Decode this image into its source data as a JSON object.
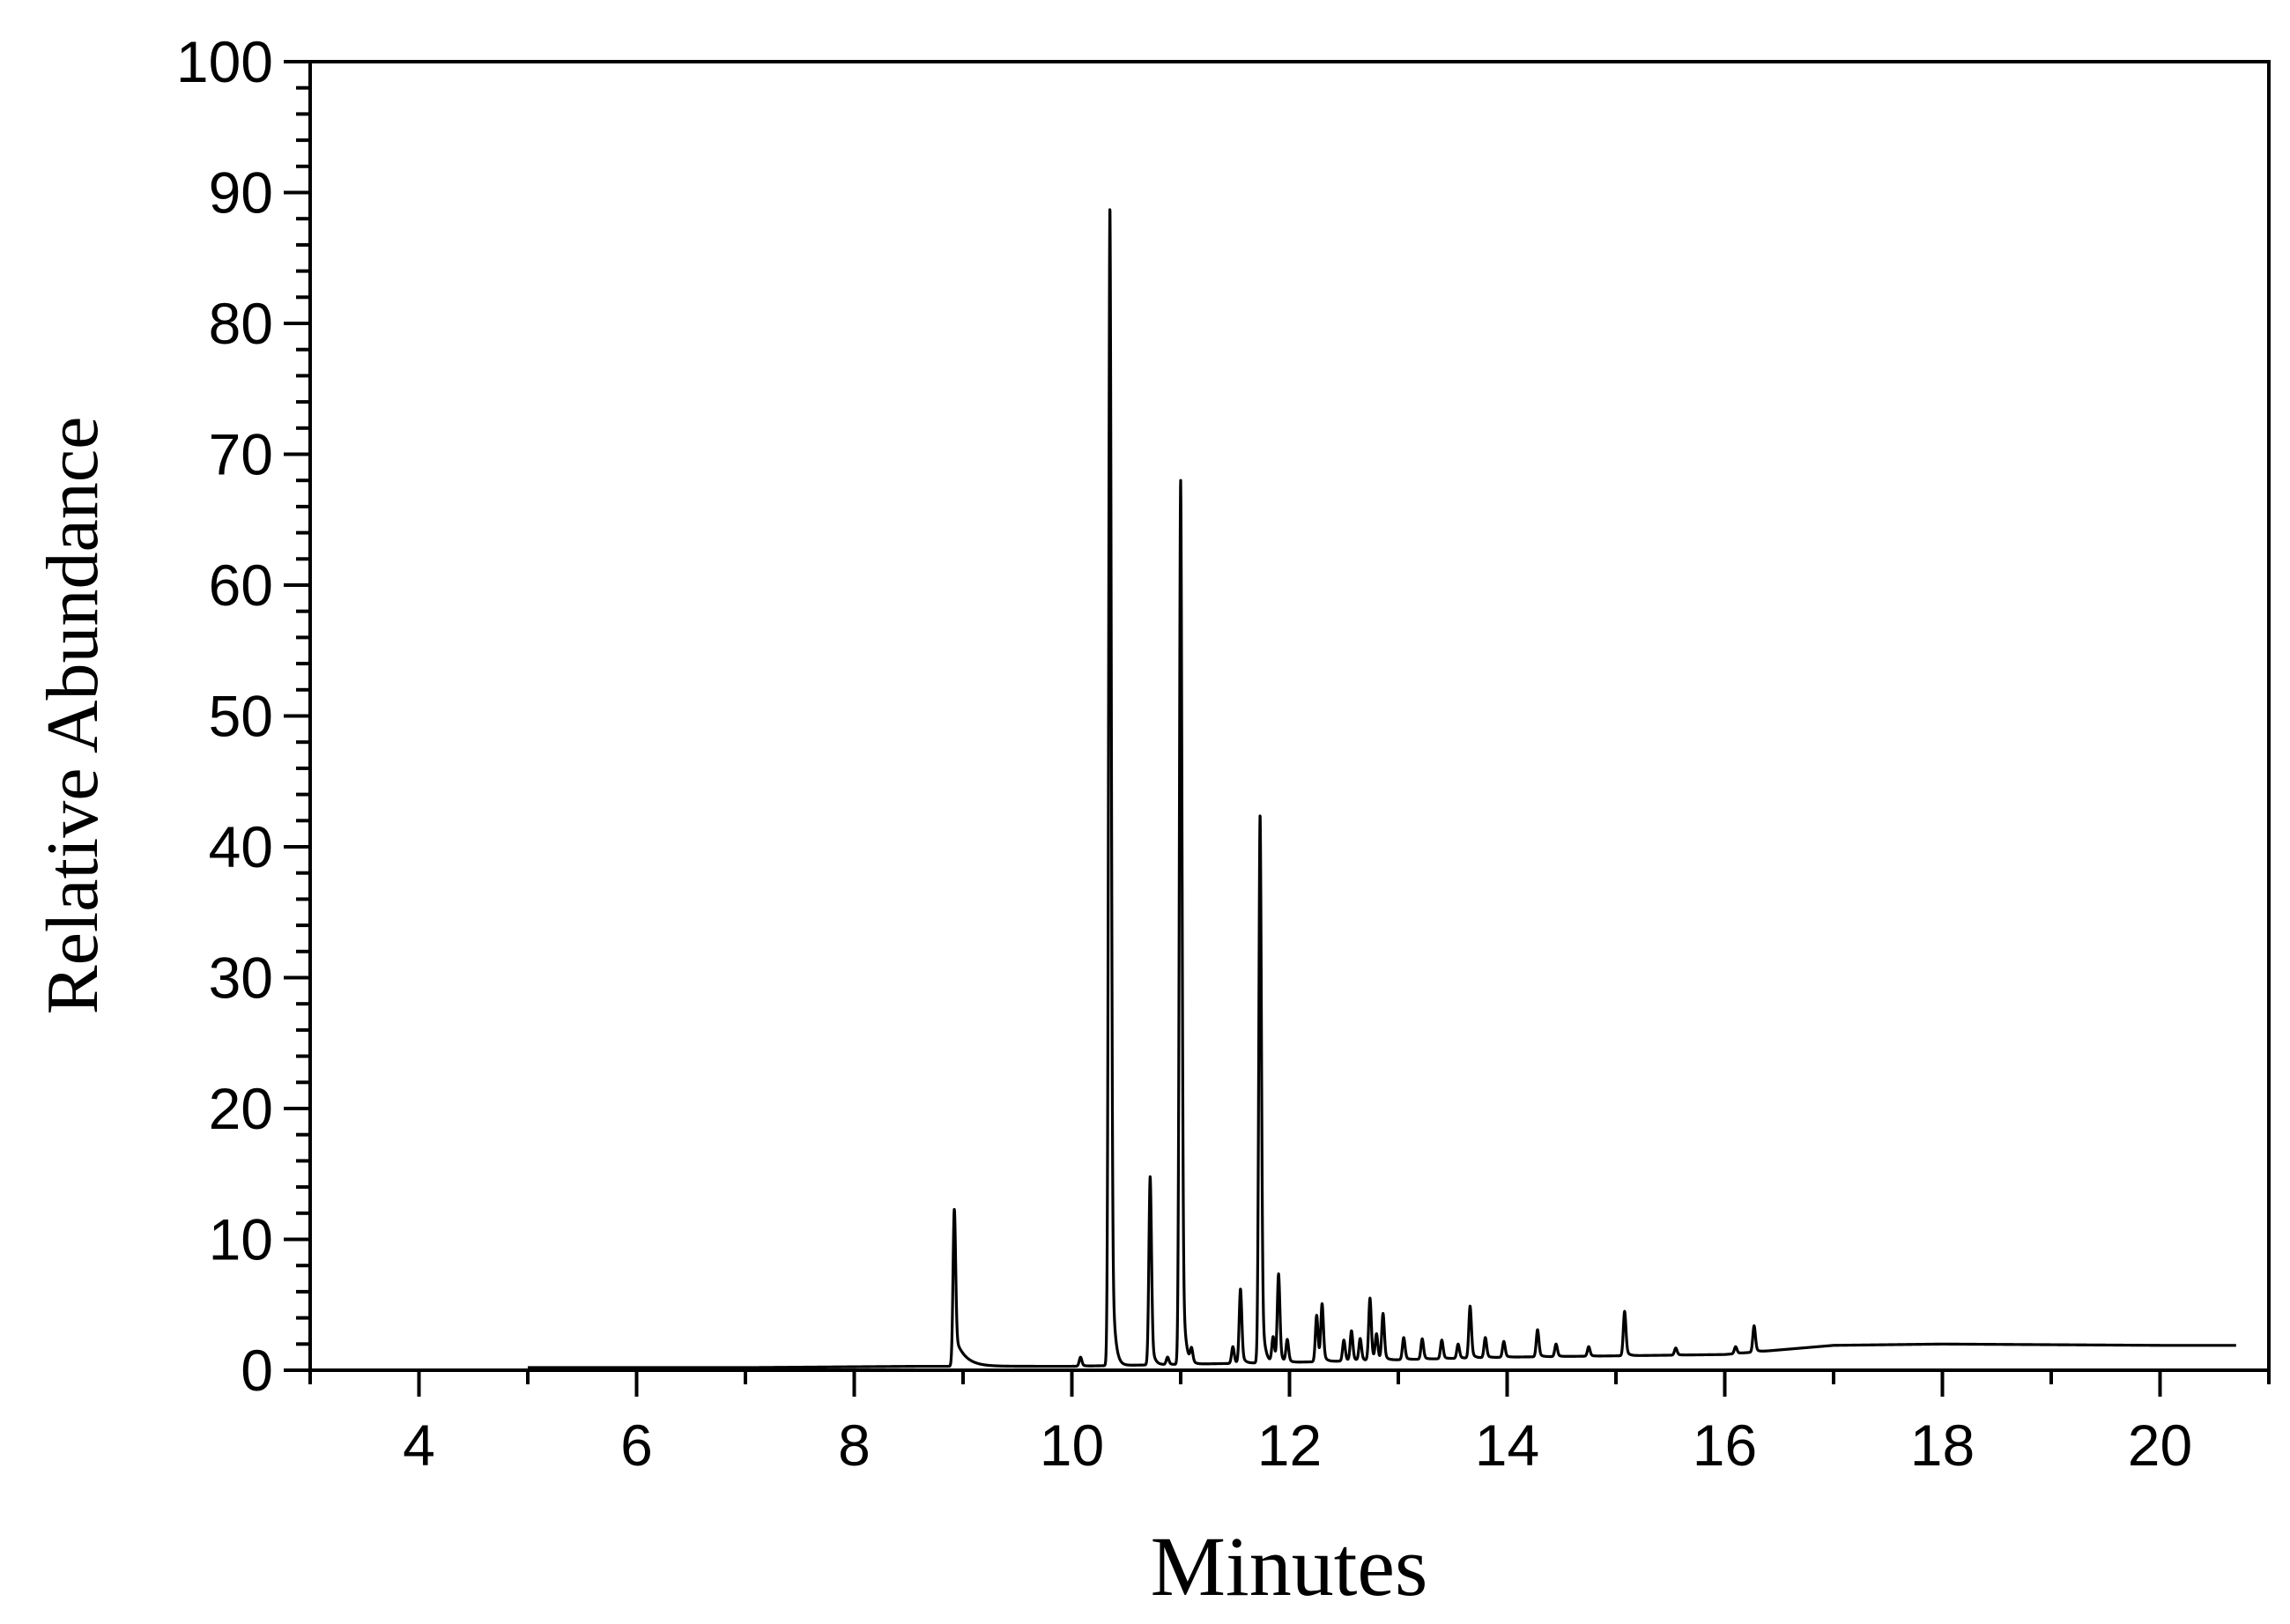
{
  "chart_data": {
    "type": "line",
    "title": "",
    "xlabel": "Minutes",
    "ylabel": "Relative Abundance",
    "xlim": [
      3,
      21
    ],
    "ylim": [
      0,
      100
    ],
    "x_ticks": [
      4,
      6,
      8,
      10,
      12,
      14,
      16,
      18,
      20
    ],
    "x_tick_labels": [
      "4",
      "6",
      "8",
      "10",
      "12",
      "14",
      "16",
      "18",
      "20"
    ],
    "y_ticks": [
      0,
      10,
      20,
      30,
      40,
      50,
      60,
      70,
      80,
      90,
      100
    ],
    "y_tick_labels": [
      "0",
      "10",
      "20",
      "30",
      "40",
      "50",
      "60",
      "70",
      "80",
      "90",
      "100"
    ],
    "grid": false,
    "line_color": "#000000",
    "series": [
      {
        "baseline": [
          [
            3.0,
            0.1
          ],
          [
            5.0,
            0.2
          ],
          [
            7.0,
            0.2
          ],
          [
            8.6,
            0.3
          ],
          [
            10.0,
            0.3
          ],
          [
            12.0,
            0.6
          ],
          [
            14.0,
            1.0
          ],
          [
            16.0,
            1.2
          ],
          [
            17.0,
            1.9
          ],
          [
            18.0,
            2.0
          ],
          [
            20.0,
            1.9
          ],
          [
            20.7,
            1.9
          ]
        ],
        "peaks": [
          {
            "x": 8.92,
            "y": 12.3
          },
          {
            "x": 10.08,
            "y": 1.0
          },
          {
            "x": 10.35,
            "y": 89.0
          },
          {
            "x": 10.72,
            "y": 14.8
          },
          {
            "x": 10.88,
            "y": 1.0
          },
          {
            "x": 11.0,
            "y": 68.0
          },
          {
            "x": 11.1,
            "y": 1.5
          },
          {
            "x": 11.48,
            "y": 1.8
          },
          {
            "x": 11.55,
            "y": 6.2
          },
          {
            "x": 11.73,
            "y": 42.5
          },
          {
            "x": 11.85,
            "y": 2.5
          },
          {
            "x": 11.9,
            "y": 7.3
          },
          {
            "x": 11.98,
            "y": 2.3
          },
          {
            "x": 12.25,
            "y": 4.2
          },
          {
            "x": 12.3,
            "y": 5.0
          },
          {
            "x": 12.5,
            "y": 2.3
          },
          {
            "x": 12.57,
            "y": 3.0
          },
          {
            "x": 12.65,
            "y": 2.4
          },
          {
            "x": 12.74,
            "y": 5.5
          },
          {
            "x": 12.8,
            "y": 2.7
          },
          {
            "x": 12.86,
            "y": 4.3
          },
          {
            "x": 13.05,
            "y": 2.5
          },
          {
            "x": 13.22,
            "y": 2.4
          },
          {
            "x": 13.4,
            "y": 2.3
          },
          {
            "x": 13.55,
            "y": 2.0
          },
          {
            "x": 13.66,
            "y": 4.9
          },
          {
            "x": 13.8,
            "y": 2.5
          },
          {
            "x": 13.97,
            "y": 2.2
          },
          {
            "x": 14.28,
            "y": 3.1
          },
          {
            "x": 14.45,
            "y": 2.0
          },
          {
            "x": 14.75,
            "y": 1.8
          },
          {
            "x": 15.08,
            "y": 4.5
          },
          {
            "x": 15.55,
            "y": 1.7
          },
          {
            "x": 16.1,
            "y": 1.8
          },
          {
            "x": 16.27,
            "y": 3.4
          }
        ]
      }
    ]
  }
}
